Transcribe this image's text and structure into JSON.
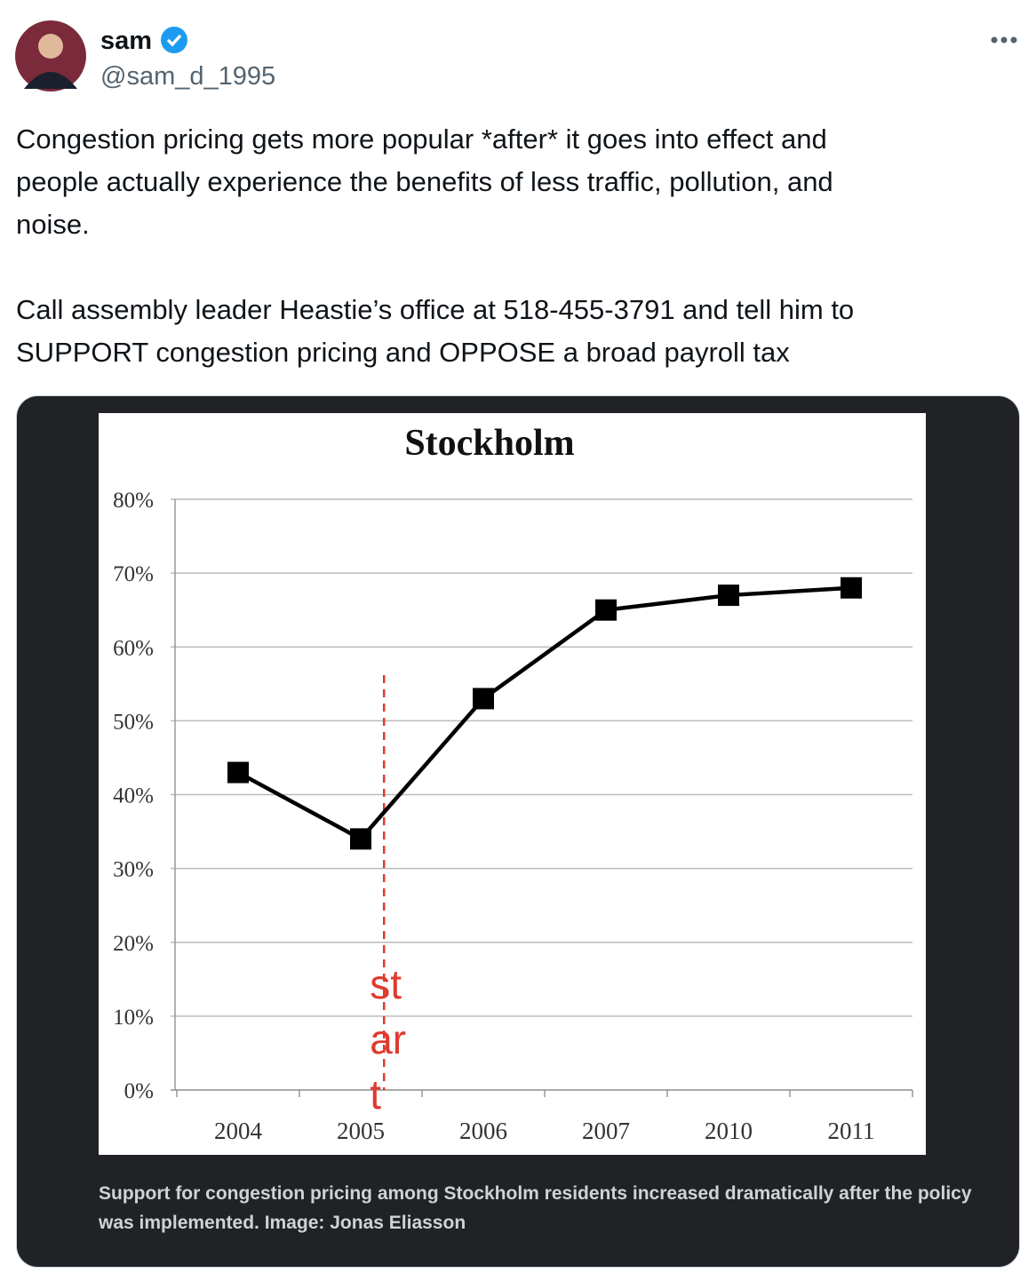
{
  "tweet": {
    "name": "sam",
    "handle": "@sam_d_1995",
    "paragraphs": [
      [
        "Congestion pricing gets more popular *after* it goes into effect and",
        "people actually experience the benefits of less traffic, pollution, and",
        "noise."
      ],
      [
        "Call assembly leader Heastie’s office at 518-455-3791 and tell him to",
        "SUPPORT congestion pricing and OPPOSE a broad payroll tax"
      ]
    ],
    "caption": [
      "Support for congestion pricing among Stockholm residents increased dramatically after the policy",
      "was implemented. Image: Jonas Eliasson"
    ]
  },
  "chart_data": {
    "type": "line",
    "title": "Stockholm",
    "categories": [
      "2004",
      "2005",
      "2006",
      "2007",
      "2010",
      "2011"
    ],
    "values": [
      43,
      34,
      53,
      65,
      67,
      68
    ],
    "color": "#000000",
    "ylim": [
      0,
      80
    ],
    "yticks": [
      {
        "value": 0,
        "label": "0%"
      },
      {
        "value": 10,
        "label": "10%"
      },
      {
        "value": 20,
        "label": "20%"
      },
      {
        "value": 30,
        "label": "30%"
      },
      {
        "value": 40,
        "label": "40%"
      },
      {
        "value": 50,
        "label": "50%"
      },
      {
        "value": 60,
        "label": "60%"
      },
      {
        "value": 70,
        "label": "70%"
      },
      {
        "value": 80,
        "label": "80%"
      }
    ],
    "grid": true,
    "annotation": {
      "lines": [
        "st",
        "ar",
        "t"
      ],
      "color": "#e03a2f"
    }
  }
}
